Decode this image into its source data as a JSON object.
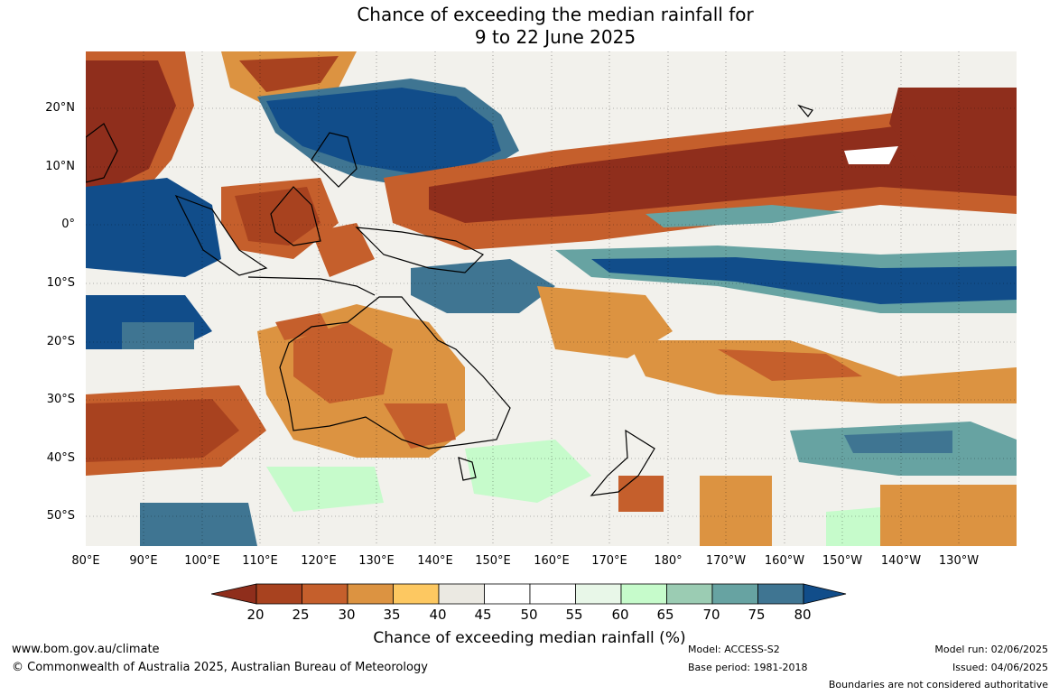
{
  "title": {
    "line1": "Chance of exceeding the median rainfall for",
    "line2": "9 to 22 June 2025"
  },
  "lat_labels": [
    "20°N",
    "10°N",
    "0°",
    "10°S",
    "20°S",
    "30°S",
    "40°S",
    "50°S"
  ],
  "lon_labels": [
    "80°E",
    "90°E",
    "100°E",
    "110°E",
    "120°E",
    "130°E",
    "140°E",
    "150°E",
    "160°E",
    "170°E",
    "180°",
    "170°W",
    "160°W",
    "150°W",
    "140°W",
    "130°W"
  ],
  "colorbar": {
    "ticks": [
      "20",
      "25",
      "30",
      "35",
      "40",
      "45",
      "50",
      "55",
      "60",
      "65",
      "70",
      "75",
      "80"
    ],
    "colors": [
      "#8f2e1c",
      "#a8421f",
      "#c55f2c",
      "#dc9341",
      "#fdc861",
      "#ebe9e2",
      "#ffffff",
      "#ffffff",
      "#e8f7e8",
      "#c6fbcb",
      "#9bccb3",
      "#67a3a2",
      "#3f7592",
      "#114d8a"
    ],
    "label": "Chance of exceeding median rainfall (%)"
  },
  "footer": {
    "url": "www.bom.gov.au/climate",
    "copyright": "© Commonwealth of Australia 2025, Australian Bureau of Meteorology",
    "model": "Model: ACCESS-S2",
    "base_period": "Base period: 1981-2018",
    "model_run": "Model run: 02/06/2025",
    "issued": "Issued: 04/06/2025",
    "disclaimer": "Boundaries are not considered authoritative"
  },
  "map_regions": [
    "western-indian-ocean-dry",
    "maritime-continent-wet",
    "equatorial-pacific-dry-band",
    "south-pacific-wet-band",
    "australia-dry",
    "tasman-sea-mixed",
    "southern-ocean-mixed"
  ]
}
